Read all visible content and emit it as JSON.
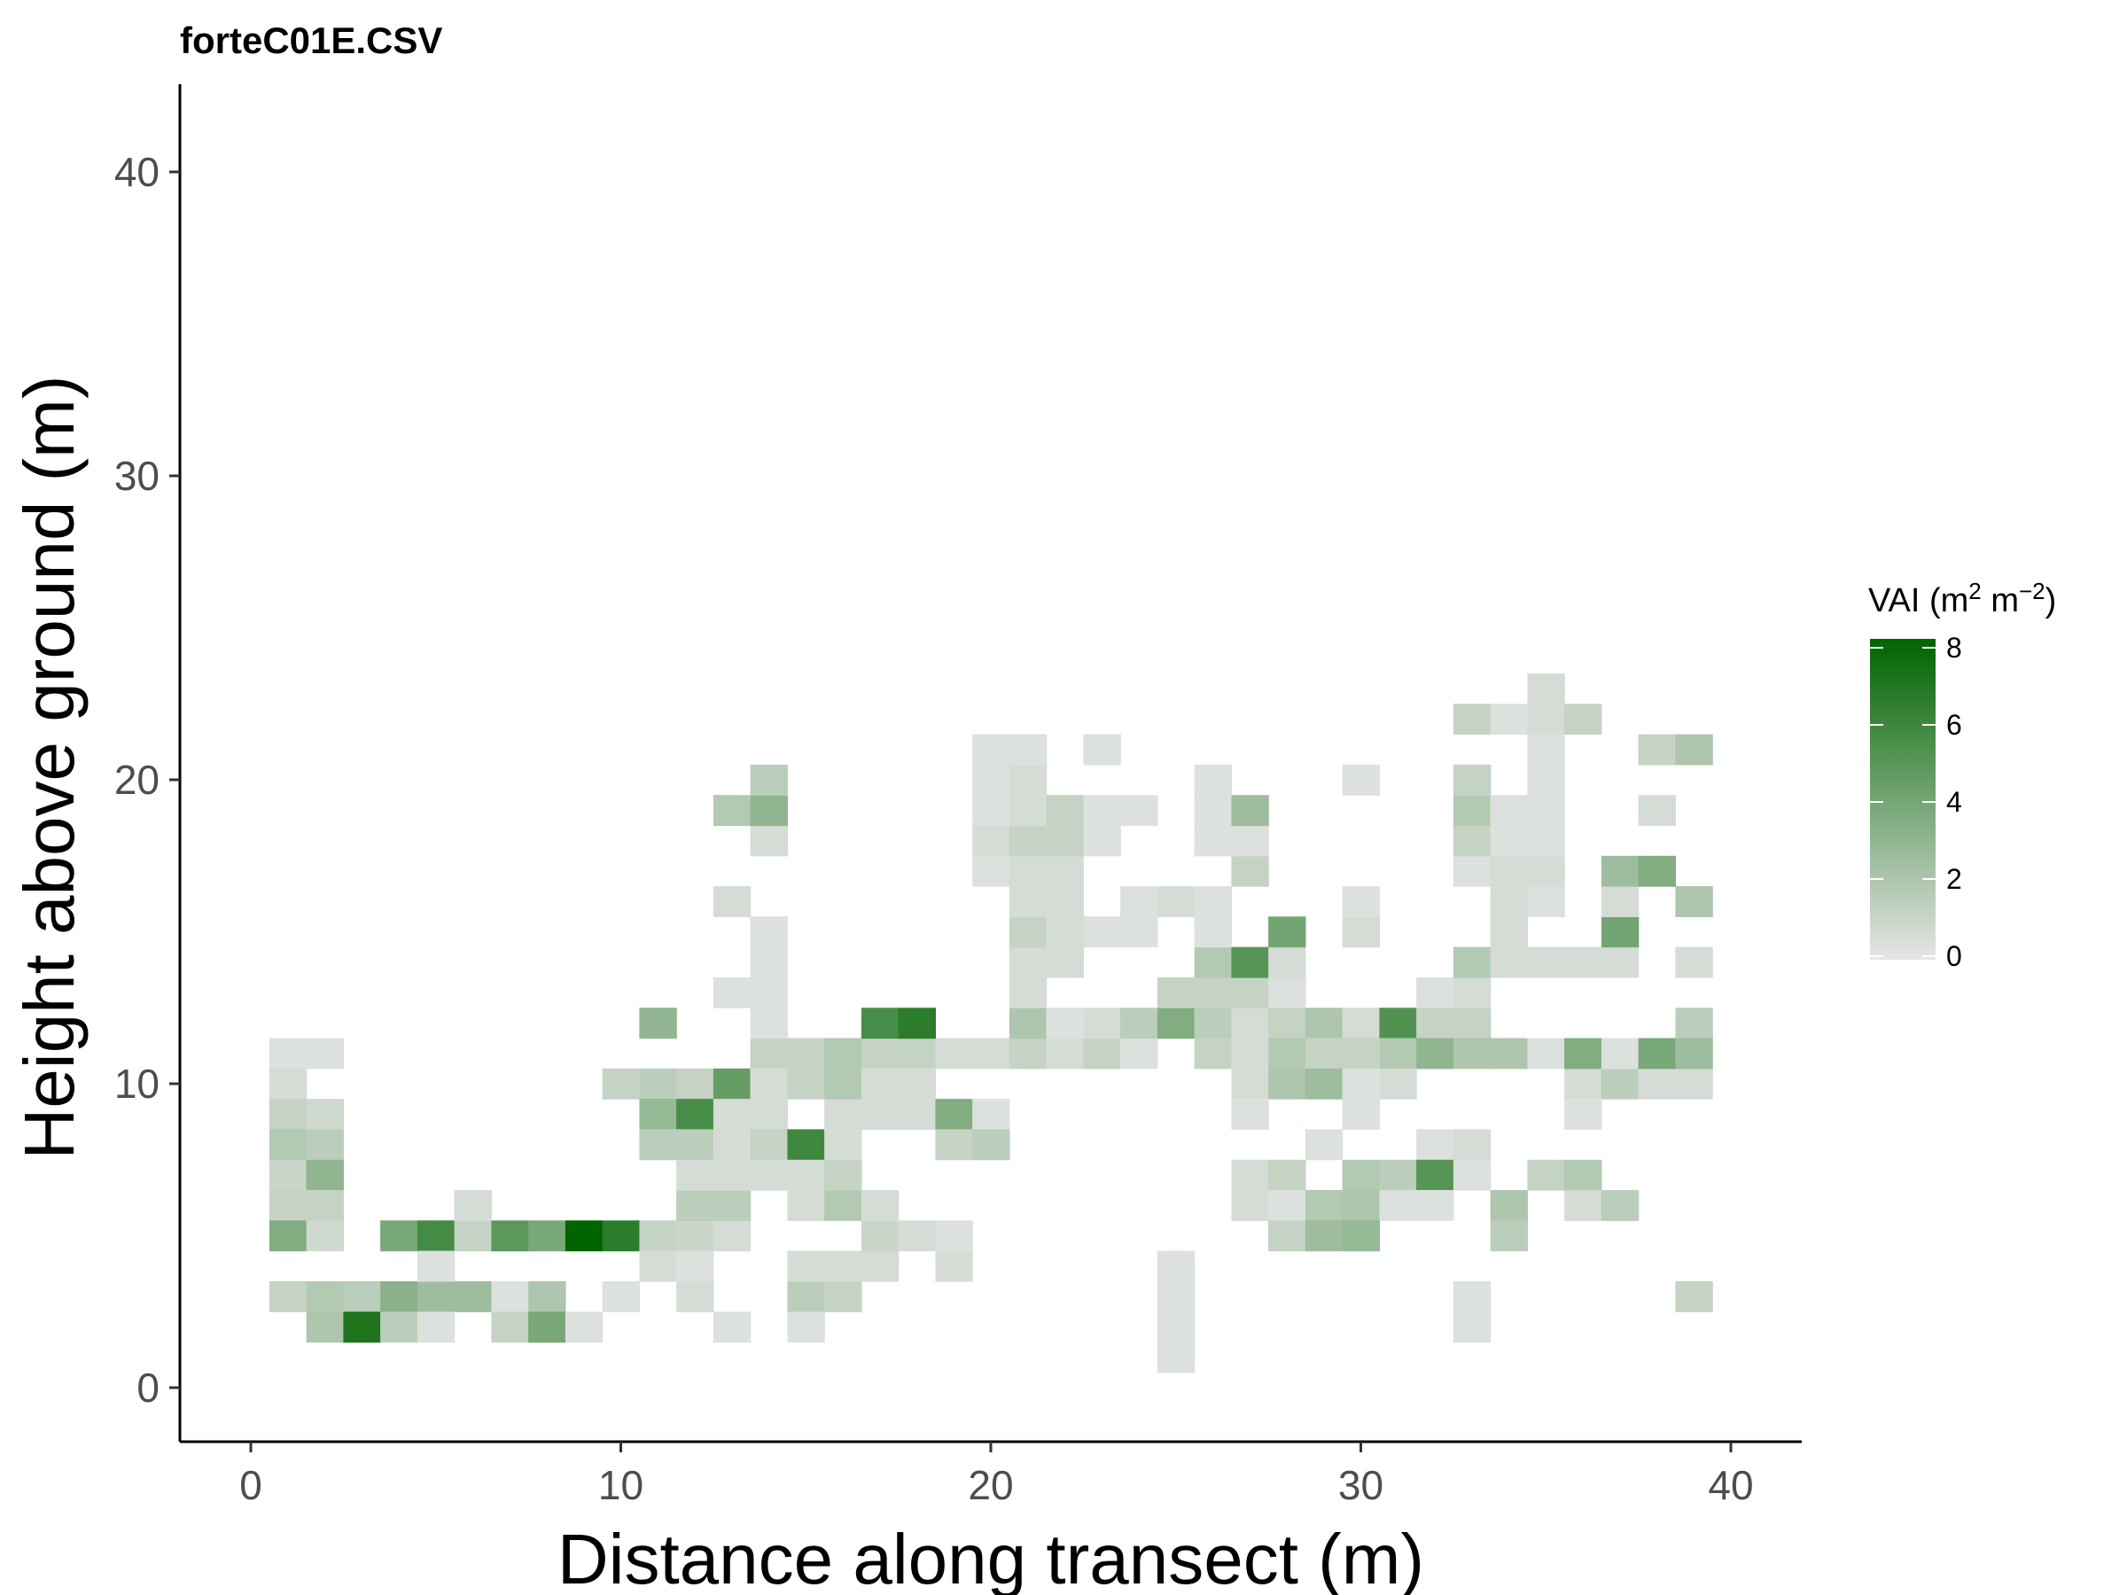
{
  "chart_data": {
    "type": "heatmap",
    "title": "forteC01E.CSV",
    "xlabel": "Distance along transect (m)",
    "ylabel": "Height above ground (m)",
    "xlim": [
      -2,
      42
    ],
    "ylim": [
      -2,
      43
    ],
    "x_ticks": [
      0,
      10,
      20,
      30,
      40
    ],
    "y_ticks": [
      0,
      10,
      20,
      30,
      40
    ],
    "cell_width": 1,
    "cell_height": 1,
    "legend": {
      "title_main": "VAI (m",
      "title_sup1": "2",
      "title_mid": " m",
      "title_sup2": "−2",
      "title_end": ")",
      "ticks": [
        0,
        2,
        4,
        6,
        8
      ],
      "range": [
        0,
        8
      ],
      "low_color": "#e6e6e6",
      "high_color": "#006400",
      "placement": "right"
    },
    "grid": false,
    "cells": [
      {
        "x": 1,
        "y": 11,
        "v": 0.3
      },
      {
        "x": 2,
        "y": 11,
        "v": 0.3
      },
      {
        "x": 1,
        "y": 10,
        "v": 0.6
      },
      {
        "x": 1,
        "y": 9,
        "v": 1.2
      },
      {
        "x": 2,
        "y": 9,
        "v": 0.8
      },
      {
        "x": 1,
        "y": 8,
        "v": 1.8
      },
      {
        "x": 2,
        "y": 8,
        "v": 1.5
      },
      {
        "x": 1,
        "y": 7,
        "v": 1.0
      },
      {
        "x": 2,
        "y": 7,
        "v": 3.0
      },
      {
        "x": 1,
        "y": 6,
        "v": 1.2
      },
      {
        "x": 2,
        "y": 6,
        "v": 1.2
      },
      {
        "x": 1,
        "y": 5,
        "v": 3.5
      },
      {
        "x": 2,
        "y": 5,
        "v": 0.8
      },
      {
        "x": 4,
        "y": 5,
        "v": 3.8
      },
      {
        "x": 5,
        "y": 5,
        "v": 5.6
      },
      {
        "x": 6,
        "y": 5,
        "v": 1.2
      },
      {
        "x": 7,
        "y": 5,
        "v": 4.8
      },
      {
        "x": 8,
        "y": 5,
        "v": 3.8
      },
      {
        "x": 9,
        "y": 5,
        "v": 8.0
      },
      {
        "x": 10,
        "y": 5,
        "v": 6.5
      },
      {
        "x": 11,
        "y": 5,
        "v": 1.2
      },
      {
        "x": 12,
        "y": 5,
        "v": 1.0
      },
      {
        "x": 13,
        "y": 5,
        "v": 0.6
      },
      {
        "x": 17,
        "y": 5,
        "v": 1.0
      },
      {
        "x": 18,
        "y": 5,
        "v": 0.6
      },
      {
        "x": 19,
        "y": 5,
        "v": 0.3
      },
      {
        "x": 6,
        "y": 6,
        "v": 0.6
      },
      {
        "x": 12,
        "y": 6,
        "v": 1.5
      },
      {
        "x": 13,
        "y": 6,
        "v": 1.5
      },
      {
        "x": 15,
        "y": 6,
        "v": 0.6
      },
      {
        "x": 16,
        "y": 6,
        "v": 1.8
      },
      {
        "x": 17,
        "y": 6,
        "v": 0.6
      },
      {
        "x": 1,
        "y": 3,
        "v": 1.2
      },
      {
        "x": 2,
        "y": 3,
        "v": 1.8
      },
      {
        "x": 3,
        "y": 3,
        "v": 1.5
      },
      {
        "x": 4,
        "y": 3,
        "v": 3.2
      },
      {
        "x": 5,
        "y": 3,
        "v": 2.5
      },
      {
        "x": 6,
        "y": 3,
        "v": 2.5
      },
      {
        "x": 7,
        "y": 3,
        "v": 0.3
      },
      {
        "x": 8,
        "y": 3,
        "v": 2.0
      },
      {
        "x": 10,
        "y": 3,
        "v": 0.3
      },
      {
        "x": 12,
        "y": 3,
        "v": 0.6
      },
      {
        "x": 15,
        "y": 3,
        "v": 1.5
      },
      {
        "x": 16,
        "y": 3,
        "v": 1.2
      },
      {
        "x": 5,
        "y": 4,
        "v": 0.3
      },
      {
        "x": 11,
        "y": 4,
        "v": 0.6
      },
      {
        "x": 12,
        "y": 4,
        "v": 0.3
      },
      {
        "x": 15,
        "y": 4,
        "v": 0.6
      },
      {
        "x": 16,
        "y": 4,
        "v": 0.6
      },
      {
        "x": 17,
        "y": 4,
        "v": 0.6
      },
      {
        "x": 19,
        "y": 4,
        "v": 0.6
      },
      {
        "x": 2,
        "y": 2,
        "v": 2.0
      },
      {
        "x": 3,
        "y": 2,
        "v": 7.0
      },
      {
        "x": 4,
        "y": 2,
        "v": 1.5
      },
      {
        "x": 5,
        "y": 2,
        "v": 0.3
      },
      {
        "x": 7,
        "y": 2,
        "v": 1.2
      },
      {
        "x": 8,
        "y": 2,
        "v": 3.8
      },
      {
        "x": 9,
        "y": 2,
        "v": 0.3
      },
      {
        "x": 13,
        "y": 2,
        "v": 0.3
      },
      {
        "x": 15,
        "y": 2,
        "v": 0.3
      },
      {
        "x": 25,
        "y": 1,
        "v": 0.3
      },
      {
        "x": 25,
        "y": 2,
        "v": 0.3
      },
      {
        "x": 25,
        "y": 3,
        "v": 0.3
      },
      {
        "x": 25,
        "y": 4,
        "v": 0.3
      },
      {
        "x": 33,
        "y": 2,
        "v": 0.3
      },
      {
        "x": 33,
        "y": 3,
        "v": 0.3
      },
      {
        "x": 39,
        "y": 3,
        "v": 1.2
      },
      {
        "x": 10,
        "y": 10,
        "v": 1.2
      },
      {
        "x": 11,
        "y": 10,
        "v": 1.5
      },
      {
        "x": 12,
        "y": 10,
        "v": 1.2
      },
      {
        "x": 13,
        "y": 10,
        "v": 4.5
      },
      {
        "x": 14,
        "y": 10,
        "v": 0.3
      },
      {
        "x": 11,
        "y": 9,
        "v": 2.8
      },
      {
        "x": 12,
        "y": 9,
        "v": 5.5
      },
      {
        "x": 13,
        "y": 9,
        "v": 0.6
      },
      {
        "x": 14,
        "y": 9,
        "v": 0.6
      },
      {
        "x": 11,
        "y": 8,
        "v": 1.5
      },
      {
        "x": 12,
        "y": 8,
        "v": 1.5
      },
      {
        "x": 13,
        "y": 8,
        "v": 0.6
      },
      {
        "x": 14,
        "y": 8,
        "v": 1.2
      },
      {
        "x": 15,
        "y": 8,
        "v": 5.8
      },
      {
        "x": 12,
        "y": 7,
        "v": 0.6
      },
      {
        "x": 13,
        "y": 7,
        "v": 0.6
      },
      {
        "x": 14,
        "y": 7,
        "v": 0.6
      },
      {
        "x": 15,
        "y": 7,
        "v": 0.6
      },
      {
        "x": 16,
        "y": 7,
        "v": 1.2
      },
      {
        "x": 16,
        "y": 9,
        "v": 0.6
      },
      {
        "x": 17,
        "y": 9,
        "v": 0.6
      },
      {
        "x": 18,
        "y": 9,
        "v": 0.6
      },
      {
        "x": 19,
        "y": 9,
        "v": 3.5
      },
      {
        "x": 20,
        "y": 9,
        "v": 0.3
      },
      {
        "x": 16,
        "y": 8,
        "v": 0.6
      },
      {
        "x": 19,
        "y": 8,
        "v": 1.2
      },
      {
        "x": 20,
        "y": 8,
        "v": 1.5
      },
      {
        "x": 14,
        "y": 11,
        "v": 1.2
      },
      {
        "x": 15,
        "y": 11,
        "v": 1.2
      },
      {
        "x": 16,
        "y": 11,
        "v": 1.8
      },
      {
        "x": 17,
        "y": 11,
        "v": 1.2
      },
      {
        "x": 18,
        "y": 11,
        "v": 1.2
      },
      {
        "x": 19,
        "y": 11,
        "v": 0.6
      },
      {
        "x": 20,
        "y": 11,
        "v": 0.6
      },
      {
        "x": 21,
        "y": 11,
        "v": 1.2
      },
      {
        "x": 22,
        "y": 11,
        "v": 0.6
      },
      {
        "x": 23,
        "y": 11,
        "v": 1.2
      },
      {
        "x": 24,
        "y": 11,
        "v": 0.3
      },
      {
        "x": 14,
        "y": 10,
        "v": 0.6
      },
      {
        "x": 15,
        "y": 10,
        "v": 1.2
      },
      {
        "x": 16,
        "y": 10,
        "v": 1.8
      },
      {
        "x": 17,
        "y": 10,
        "v": 0.6
      },
      {
        "x": 18,
        "y": 10,
        "v": 0.6
      },
      {
        "x": 11,
        "y": 12,
        "v": 3.0
      },
      {
        "x": 14,
        "y": 12,
        "v": 0.3
      },
      {
        "x": 17,
        "y": 12,
        "v": 5.5
      },
      {
        "x": 18,
        "y": 12,
        "v": 6.5
      },
      {
        "x": 13,
        "y": 13,
        "v": 0.3
      },
      {
        "x": 14,
        "y": 13,
        "v": 0.3
      },
      {
        "x": 14,
        "y": 14,
        "v": 0.3
      },
      {
        "x": 14,
        "y": 15,
        "v": 0.3
      },
      {
        "x": 13,
        "y": 16,
        "v": 0.6
      },
      {
        "x": 14,
        "y": 18,
        "v": 0.6
      },
      {
        "x": 13,
        "y": 19,
        "v": 1.8
      },
      {
        "x": 14,
        "y": 19,
        "v": 3.0
      },
      {
        "x": 14,
        "y": 20,
        "v": 1.5
      },
      {
        "x": 21,
        "y": 12,
        "v": 2.0
      },
      {
        "x": 22,
        "y": 12,
        "v": 0.3
      },
      {
        "x": 23,
        "y": 12,
        "v": 0.6
      },
      {
        "x": 24,
        "y": 12,
        "v": 1.5
      },
      {
        "x": 25,
        "y": 12,
        "v": 3.5
      },
      {
        "x": 26,
        "y": 12,
        "v": 1.5
      },
      {
        "x": 27,
        "y": 12,
        "v": 0.6
      },
      {
        "x": 28,
        "y": 12,
        "v": 1.2
      },
      {
        "x": 29,
        "y": 12,
        "v": 2.0
      },
      {
        "x": 30,
        "y": 12,
        "v": 0.6
      },
      {
        "x": 31,
        "y": 12,
        "v": 5.2
      },
      {
        "x": 32,
        "y": 12,
        "v": 1.2
      },
      {
        "x": 33,
        "y": 12,
        "v": 1.2
      },
      {
        "x": 39,
        "y": 12,
        "v": 1.5
      },
      {
        "x": 25,
        "y": 13,
        "v": 1.2
      },
      {
        "x": 26,
        "y": 13,
        "v": 1.2
      },
      {
        "x": 27,
        "y": 13,
        "v": 1.2
      },
      {
        "x": 28,
        "y": 13,
        "v": 0.3
      },
      {
        "x": 32,
        "y": 13,
        "v": 0.3
      },
      {
        "x": 33,
        "y": 13,
        "v": 0.6
      },
      {
        "x": 21,
        "y": 13,
        "v": 0.6
      },
      {
        "x": 21,
        "y": 14,
        "v": 0.6
      },
      {
        "x": 22,
        "y": 14,
        "v": 0.6
      },
      {
        "x": 26,
        "y": 14,
        "v": 1.8
      },
      {
        "x": 27,
        "y": 14,
        "v": 5.0
      },
      {
        "x": 28,
        "y": 14,
        "v": 0.6
      },
      {
        "x": 33,
        "y": 14,
        "v": 1.8
      },
      {
        "x": 34,
        "y": 14,
        "v": 0.6
      },
      {
        "x": 35,
        "y": 14,
        "v": 0.6
      },
      {
        "x": 36,
        "y": 14,
        "v": 0.6
      },
      {
        "x": 37,
        "y": 14,
        "v": 0.6
      },
      {
        "x": 39,
        "y": 14,
        "v": 0.6
      },
      {
        "x": 21,
        "y": 15,
        "v": 1.2
      },
      {
        "x": 22,
        "y": 15,
        "v": 0.6
      },
      {
        "x": 23,
        "y": 15,
        "v": 0.3
      },
      {
        "x": 24,
        "y": 15,
        "v": 0.3
      },
      {
        "x": 26,
        "y": 15,
        "v": 0.3
      },
      {
        "x": 28,
        "y": 15,
        "v": 4.0
      },
      {
        "x": 30,
        "y": 15,
        "v": 0.6
      },
      {
        "x": 34,
        "y": 15,
        "v": 0.6
      },
      {
        "x": 37,
        "y": 15,
        "v": 4.0
      },
      {
        "x": 21,
        "y": 16,
        "v": 0.6
      },
      {
        "x": 22,
        "y": 16,
        "v": 0.6
      },
      {
        "x": 24,
        "y": 16,
        "v": 0.3
      },
      {
        "x": 25,
        "y": 16,
        "v": 0.6
      },
      {
        "x": 26,
        "y": 16,
        "v": 0.3
      },
      {
        "x": 30,
        "y": 16,
        "v": 0.3
      },
      {
        "x": 34,
        "y": 16,
        "v": 0.6
      },
      {
        "x": 35,
        "y": 16,
        "v": 0.3
      },
      {
        "x": 37,
        "y": 16,
        "v": 0.6
      },
      {
        "x": 39,
        "y": 16,
        "v": 2.0
      },
      {
        "x": 20,
        "y": 17,
        "v": 0.3
      },
      {
        "x": 21,
        "y": 17,
        "v": 0.6
      },
      {
        "x": 22,
        "y": 17,
        "v": 0.6
      },
      {
        "x": 27,
        "y": 17,
        "v": 1.2
      },
      {
        "x": 33,
        "y": 17,
        "v": 0.3
      },
      {
        "x": 34,
        "y": 17,
        "v": 0.6
      },
      {
        "x": 35,
        "y": 17,
        "v": 0.6
      },
      {
        "x": 37,
        "y": 17,
        "v": 2.5
      },
      {
        "x": 38,
        "y": 17,
        "v": 3.5
      },
      {
        "x": 20,
        "y": 18,
        "v": 0.6
      },
      {
        "x": 21,
        "y": 18,
        "v": 1.2
      },
      {
        "x": 22,
        "y": 18,
        "v": 1.2
      },
      {
        "x": 23,
        "y": 18,
        "v": 0.3
      },
      {
        "x": 26,
        "y": 18,
        "v": 0.3
      },
      {
        "x": 27,
        "y": 18,
        "v": 0.3
      },
      {
        "x": 33,
        "y": 18,
        "v": 1.2
      },
      {
        "x": 34,
        "y": 18,
        "v": 0.3
      },
      {
        "x": 35,
        "y": 18,
        "v": 0.3
      },
      {
        "x": 20,
        "y": 19,
        "v": 0.3
      },
      {
        "x": 21,
        "y": 19,
        "v": 0.6
      },
      {
        "x": 22,
        "y": 19,
        "v": 1.2
      },
      {
        "x": 23,
        "y": 19,
        "v": 0.3
      },
      {
        "x": 24,
        "y": 19,
        "v": 0.3
      },
      {
        "x": 26,
        "y": 19,
        "v": 0.3
      },
      {
        "x": 27,
        "y": 19,
        "v": 2.5
      },
      {
        "x": 33,
        "y": 19,
        "v": 1.8
      },
      {
        "x": 34,
        "y": 19,
        "v": 0.3
      },
      {
        "x": 35,
        "y": 19,
        "v": 0.3
      },
      {
        "x": 38,
        "y": 19,
        "v": 0.6
      },
      {
        "x": 20,
        "y": 20,
        "v": 0.3
      },
      {
        "x": 21,
        "y": 20,
        "v": 0.6
      },
      {
        "x": 26,
        "y": 20,
        "v": 0.3
      },
      {
        "x": 30,
        "y": 20,
        "v": 0.3
      },
      {
        "x": 33,
        "y": 20,
        "v": 1.2
      },
      {
        "x": 35,
        "y": 20,
        "v": 0.3
      },
      {
        "x": 20,
        "y": 21,
        "v": 0.3
      },
      {
        "x": 21,
        "y": 21,
        "v": 0.3
      },
      {
        "x": 23,
        "y": 21,
        "v": 0.3
      },
      {
        "x": 35,
        "y": 21,
        "v": 0.3
      },
      {
        "x": 38,
        "y": 21,
        "v": 1.2
      },
      {
        "x": 39,
        "y": 21,
        "v": 2.0
      },
      {
        "x": 33,
        "y": 22,
        "v": 1.2
      },
      {
        "x": 34,
        "y": 22,
        "v": 0.3
      },
      {
        "x": 35,
        "y": 22,
        "v": 0.6
      },
      {
        "x": 36,
        "y": 22,
        "v": 1.2
      },
      {
        "x": 35,
        "y": 23,
        "v": 0.6
      },
      {
        "x": 36,
        "y": 10,
        "v": 0.6
      },
      {
        "x": 37,
        "y": 10,
        "v": 1.5
      },
      {
        "x": 38,
        "y": 10,
        "v": 0.6
      },
      {
        "x": 39,
        "y": 10,
        "v": 0.6
      },
      {
        "x": 31,
        "y": 11,
        "v": 1.8
      },
      {
        "x": 32,
        "y": 11,
        "v": 3.0
      },
      {
        "x": 33,
        "y": 11,
        "v": 2.0
      },
      {
        "x": 34,
        "y": 11,
        "v": 2.0
      },
      {
        "x": 35,
        "y": 11,
        "v": 0.3
      },
      {
        "x": 36,
        "y": 11,
        "v": 3.5
      },
      {
        "x": 37,
        "y": 11,
        "v": 0.3
      },
      {
        "x": 38,
        "y": 11,
        "v": 3.8
      },
      {
        "x": 39,
        "y": 11,
        "v": 2.5
      },
      {
        "x": 26,
        "y": 11,
        "v": 1.2
      },
      {
        "x": 27,
        "y": 11,
        "v": 0.6
      },
      {
        "x": 28,
        "y": 11,
        "v": 1.8
      },
      {
        "x": 29,
        "y": 11,
        "v": 1.2
      },
      {
        "x": 30,
        "y": 11,
        "v": 1.2
      },
      {
        "x": 27,
        "y": 10,
        "v": 0.6
      },
      {
        "x": 28,
        "y": 10,
        "v": 2.0
      },
      {
        "x": 29,
        "y": 10,
        "v": 2.5
      },
      {
        "x": 30,
        "y": 10,
        "v": 0.3
      },
      {
        "x": 31,
        "y": 10,
        "v": 0.6
      },
      {
        "x": 27,
        "y": 9,
        "v": 0.3
      },
      {
        "x": 30,
        "y": 9,
        "v": 0.3
      },
      {
        "x": 36,
        "y": 9,
        "v": 0.3
      },
      {
        "x": 29,
        "y": 8,
        "v": 0.3
      },
      {
        "x": 32,
        "y": 8,
        "v": 0.3
      },
      {
        "x": 33,
        "y": 8,
        "v": 0.6
      },
      {
        "x": 27,
        "y": 7,
        "v": 0.6
      },
      {
        "x": 28,
        "y": 7,
        "v": 1.2
      },
      {
        "x": 30,
        "y": 7,
        "v": 1.8
      },
      {
        "x": 31,
        "y": 7,
        "v": 1.5
      },
      {
        "x": 32,
        "y": 7,
        "v": 5.0
      },
      {
        "x": 33,
        "y": 7,
        "v": 0.3
      },
      {
        "x": 35,
        "y": 7,
        "v": 1.2
      },
      {
        "x": 36,
        "y": 7,
        "v": 1.8
      },
      {
        "x": 27,
        "y": 6,
        "v": 0.6
      },
      {
        "x": 28,
        "y": 6,
        "v": 0.3
      },
      {
        "x": 29,
        "y": 6,
        "v": 1.8
      },
      {
        "x": 30,
        "y": 6,
        "v": 2.0
      },
      {
        "x": 31,
        "y": 6,
        "v": 0.3
      },
      {
        "x": 32,
        "y": 6,
        "v": 0.3
      },
      {
        "x": 34,
        "y": 6,
        "v": 2.0
      },
      {
        "x": 36,
        "y": 6,
        "v": 0.6
      },
      {
        "x": 37,
        "y": 6,
        "v": 1.5
      },
      {
        "x": 28,
        "y": 5,
        "v": 1.2
      },
      {
        "x": 29,
        "y": 5,
        "v": 2.5
      },
      {
        "x": 30,
        "y": 5,
        "v": 2.8
      },
      {
        "x": 34,
        "y": 5,
        "v": 1.5
      }
    ]
  }
}
